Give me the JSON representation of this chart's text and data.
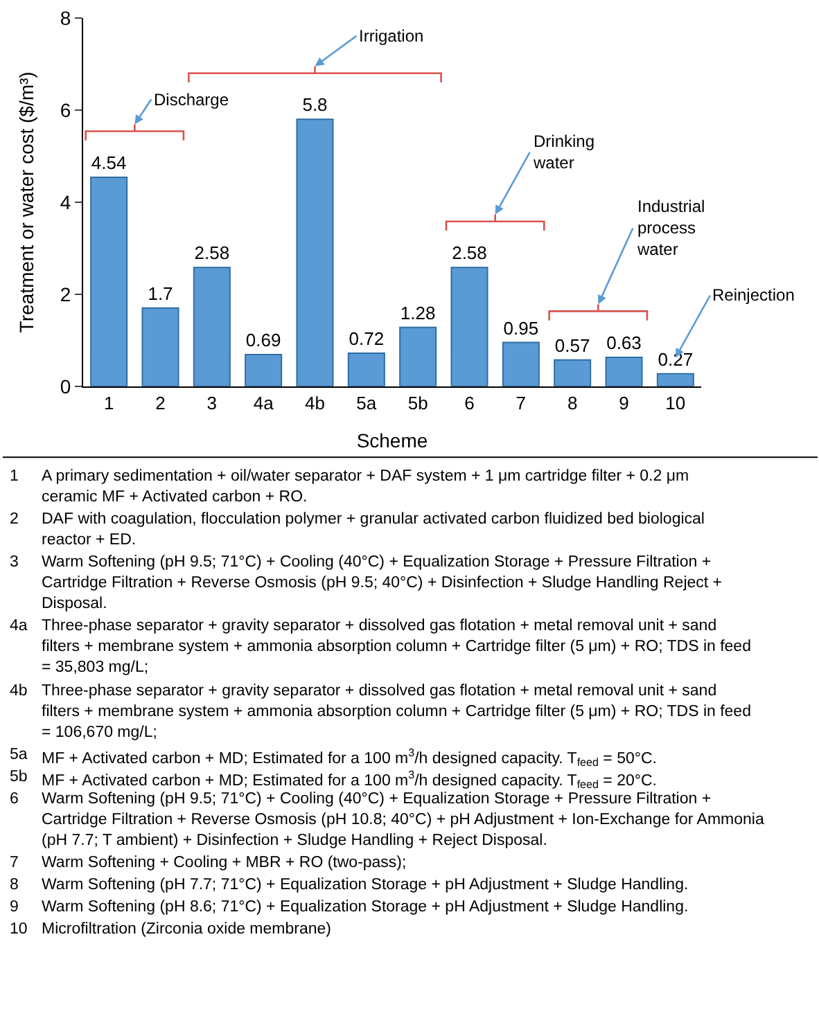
{
  "chart_data": {
    "type": "bar",
    "xlabel": "Scheme",
    "ylabel": "Treatment or water cost ($/m³)",
    "categories": [
      "1",
      "2",
      "3",
      "4a",
      "4b",
      "5a",
      "5b",
      "6",
      "7",
      "8",
      "9",
      "10"
    ],
    "values": [
      4.54,
      1.7,
      2.58,
      0.69,
      5.8,
      0.72,
      1.28,
      2.58,
      0.95,
      0.57,
      0.63,
      0.27
    ],
    "color": "#5b9bd5",
    "data_labels": true,
    "ylim": [
      0,
      8
    ],
    "yticks": [
      0,
      2,
      4,
      6,
      8
    ],
    "legend": false,
    "annotations": [
      "Discharge",
      "Irrigation",
      "Drinking water",
      "Industrial process water",
      "Reinjection",
      "1 A primary sedimentation + oil/water separator + DAF system + 1 μm cartridge filter + 0.2 μm ceramic MF + Activated carbon + RO.",
      "2 DAF with coagulation, flocculation polymer + granular activated carbon fluidized bed biological reactor + ED.",
      "3 Warm Softening (pH 9.5; 71°C) + Cooling (40°C) + Equalization Storage + Pressure Filtration + Cartridge Filtration + Reverse Osmosis (pH 9.5; 40°C) + Disinfection + Sludge Handling Reject + Disposal.",
      "4a Three-phase separator + gravity separator + dissolved gas flotation + metal removal unit + sand filters + membrane system + ammonia absorption column + Cartridge filter (5 μm) + RO; TDS in feed = 35,803 mg/L;",
      "4b Three-phase separator + gravity separator + dissolved gas flotation + metal removal unit + sand filters + membrane system + ammonia absorption column + Cartridge filter (5 μm) + RO; TDS in feed = 106,670 mg/L;",
      "5a MF + Activated carbon + MD; Estimated for a 100 m$^{3}$/h designed capacity. T$_{feed}$ = 50°C.",
      "5b MF + Activated carbon + MD; Estimated for a 100 m$^{3}$/h designed capacity. T$_{feed}$ = 20°C.",
      "6 Warm Softening (pH 9.5; 71°C) + Cooling (40°C) + Equalization Storage + Pressure Filtration + Cartridge Filtration + Reverse Osmosis (pH 10.8; 40°C) + pH Adjustment + Ion-Exchange for Ammonia (pH 7.7; T ambient) + Disinfection + Sludge Handling + Reject Disposal.",
      "7 Warm Softening + Cooling + MBR + RO (two-pass);",
      "8 Warm Softening (pH 7.7; 71°C) + Equalization Storage + pH Adjustment + Sludge Handling.",
      "9 Warm Softening (pH 8.6; 71°C) + Equalization Storage + pH Adjustment + Sludge Handling.",
      "10 Microfiltration (Zirconia oxide membrane)"
    ]
  }
}
